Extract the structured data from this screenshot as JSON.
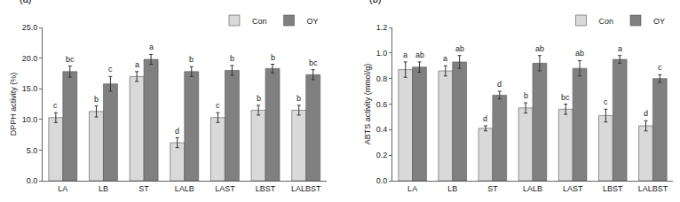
{
  "chart_data": [
    {
      "type": "bar",
      "title": "(a)",
      "y_label": "DPPH activity (%)",
      "categories": [
        "LA",
        "LB",
        "ST",
        "LALB",
        "LAST",
        "LBST",
        "LALBST"
      ],
      "series": [
        {
          "name": "Con",
          "color": "#d9d9d9",
          "values": [
            10.3,
            11.3,
            17.0,
            6.2,
            10.3,
            11.5,
            11.5
          ],
          "errors": [
            0.8,
            0.9,
            0.8,
            0.8,
            0.8,
            0.8,
            0.8
          ],
          "annotations": [
            "c",
            "b",
            "a",
            "d",
            "c",
            "b",
            "b"
          ]
        },
        {
          "name": "OY",
          "color": "#808080",
          "values": [
            17.8,
            15.8,
            19.8,
            17.8,
            18.0,
            18.3,
            17.3
          ],
          "errors": [
            0.9,
            1.2,
            0.8,
            0.8,
            0.8,
            0.7,
            0.8
          ],
          "annotations": [
            "bc",
            "c",
            "a",
            "b",
            "b",
            "b",
            "bc"
          ]
        }
      ],
      "ylim": [
        0,
        25
      ],
      "yticks": [
        {
          "value": 0,
          "label": "0.0"
        },
        {
          "value": 5,
          "label": "5.0"
        },
        {
          "value": 10,
          "label": "10.0"
        },
        {
          "value": 15,
          "label": "15.0"
        },
        {
          "value": 20,
          "label": "20.0"
        },
        {
          "value": 25,
          "label": "25.0"
        }
      ],
      "grid": false,
      "legend": "upper right"
    },
    {
      "type": "bar",
      "title": "(b)",
      "y_label": "ABTS activity (mmol/g)",
      "categories": [
        "LA",
        "LB",
        "ST",
        "LALB",
        "LAST",
        "LBST",
        "LALBST"
      ],
      "series": [
        {
          "name": "Con",
          "color": "#d9d9d9",
          "values": [
            0.87,
            0.86,
            0.41,
            0.57,
            0.56,
            0.51,
            0.43
          ],
          "errors": [
            0.06,
            0.04,
            0.02,
            0.04,
            0.04,
            0.05,
            0.04
          ],
          "annotations": [
            "a",
            "a",
            "d",
            "b",
            "bc",
            "c",
            "d"
          ]
        },
        {
          "name": "OY",
          "color": "#808080",
          "values": [
            0.89,
            0.93,
            0.67,
            0.92,
            0.88,
            0.95,
            0.8
          ],
          "errors": [
            0.04,
            0.05,
            0.03,
            0.06,
            0.06,
            0.03,
            0.03
          ],
          "annotations": [
            "ab",
            "ab",
            "d",
            "ab",
            "ab",
            "a",
            "c"
          ]
        }
      ],
      "ylim": [
        0,
        1.2
      ],
      "yticks": [
        {
          "value": 0,
          "label": "0.0"
        },
        {
          "value": 0.2,
          "label": "0.2"
        },
        {
          "value": 0.4,
          "label": "0.4"
        },
        {
          "value": 0.6,
          "label": "0.6"
        },
        {
          "value": 0.8,
          "label": "0.8"
        },
        {
          "value": 1.0,
          "label": "1.0"
        },
        {
          "value": 1.2,
          "label": "1.2"
        }
      ],
      "grid": false,
      "legend": "upper right"
    }
  ]
}
